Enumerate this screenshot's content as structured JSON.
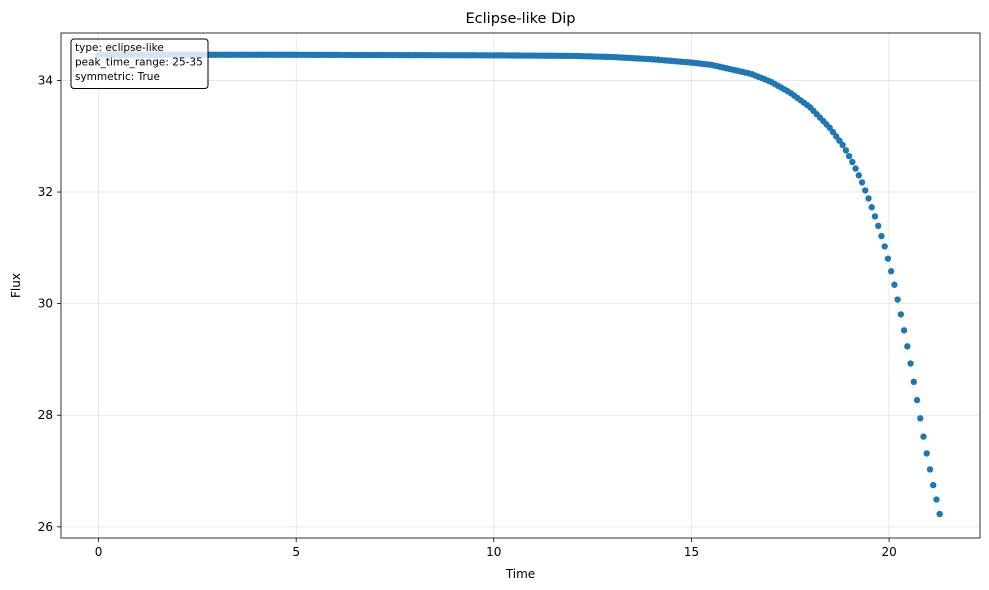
{
  "chart_data": {
    "type": "scatter",
    "title": "Eclipse-like Dip",
    "xlabel": "Time",
    "ylabel": "Flux",
    "xlim": [
      -0.95,
      22.3
    ],
    "ylim": [
      25.8,
      34.85
    ],
    "xticks": [
      0,
      5,
      10,
      15,
      20
    ],
    "yticks": [
      26,
      28,
      30,
      32,
      34
    ],
    "grid": true,
    "marker_color": "#1f77b4",
    "annotation": {
      "lines": [
        "type: eclipse-like",
        "peak_time_range: 25-35",
        "symmetric: True"
      ],
      "placement": "top-left"
    },
    "series": [
      {
        "x_start": 0,
        "x_end": 21.28,
        "n_points": 261,
        "baseline": 34.46,
        "x": [
          0,
          5,
          10,
          12,
          13,
          14,
          14.5,
          15,
          15.5,
          16,
          16.5,
          17,
          17.5,
          18,
          18.5,
          18.85,
          19.1,
          19.3,
          19.5,
          19.7,
          19.9,
          20.1,
          20.3,
          20.5,
          20.7,
          20.9,
          21.1,
          21.28
        ],
        "y": [
          34.46,
          34.46,
          34.45,
          34.44,
          34.42,
          34.38,
          34.35,
          34.32,
          34.28,
          34.2,
          34.12,
          33.98,
          33.78,
          33.52,
          33.15,
          32.82,
          32.5,
          32.2,
          31.85,
          31.45,
          31.0,
          30.45,
          29.8,
          29.1,
          28.3,
          27.5,
          26.8,
          26.23
        ]
      }
    ]
  }
}
